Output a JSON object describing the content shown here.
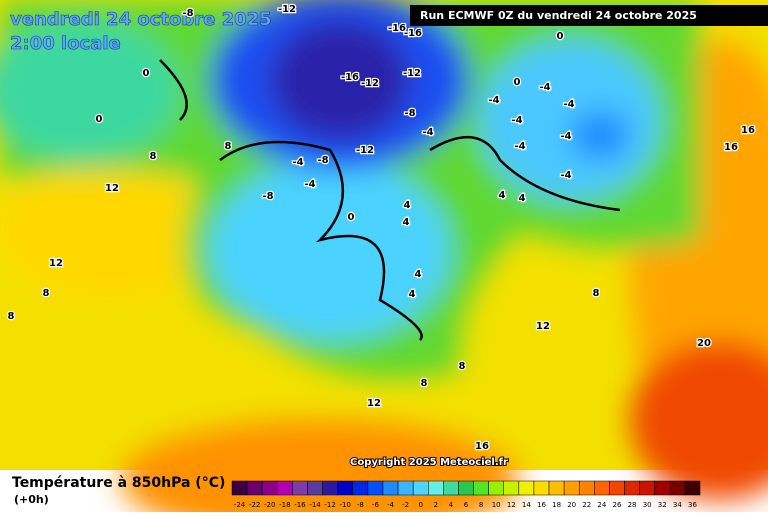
{
  "header": {
    "title": "vendredi 24 octobre 2025",
    "subtitle": "2:00 locale",
    "run": "Run ECMWF 0Z du vendredi 24 octobre 2025"
  },
  "map": {
    "labels": [
      "-8",
      "-12",
      "-16",
      "-16",
      "0",
      "0",
      "-16",
      "-12",
      "-12",
      "0",
      "-4",
      "-4",
      "-4",
      "-8",
      "-4",
      "-4",
      "0",
      "8",
      "-4",
      "-4",
      "8",
      "-12",
      "-4",
      "-8",
      "-4",
      "-4",
      "12",
      "-8",
      "4",
      "4",
      "4",
      "0",
      "4",
      "12",
      "8",
      "8",
      "4",
      "4",
      "8",
      "12",
      "8",
      "8",
      "12",
      "20",
      "16",
      "16",
      "16"
    ],
    "copyright": "Copyright 2025 Meteociel.fr"
  },
  "legend": {
    "title": "Température à 850hPa (°C)",
    "lead": "(+0h)",
    "ticks": [
      -24,
      -22,
      -20,
      -18,
      -16,
      -14,
      -12,
      -10,
      -8,
      -6,
      -4,
      -2,
      0,
      2,
      4,
      6,
      8,
      10,
      12,
      14,
      16,
      18,
      20,
      22,
      24,
      26,
      28,
      30,
      32,
      34,
      36
    ],
    "colors": [
      "#3c0040",
      "#6a006e",
      "#8c008c",
      "#b400b4",
      "#7e3ca8",
      "#5a3ca0",
      "#2a1aa0",
      "#0000c8",
      "#0028e6",
      "#0050ff",
      "#1e8cff",
      "#3cb4ff",
      "#50d2ff",
      "#64f0e6",
      "#3cdca0",
      "#28c850",
      "#50e628",
      "#96f000",
      "#c8f000",
      "#f0f000",
      "#ffdc00",
      "#ffbe00",
      "#ffa000",
      "#ff8200",
      "#ff6400",
      "#f04600",
      "#dc2800",
      "#c81400",
      "#a00000",
      "#780000",
      "#3c0000"
    ]
  }
}
